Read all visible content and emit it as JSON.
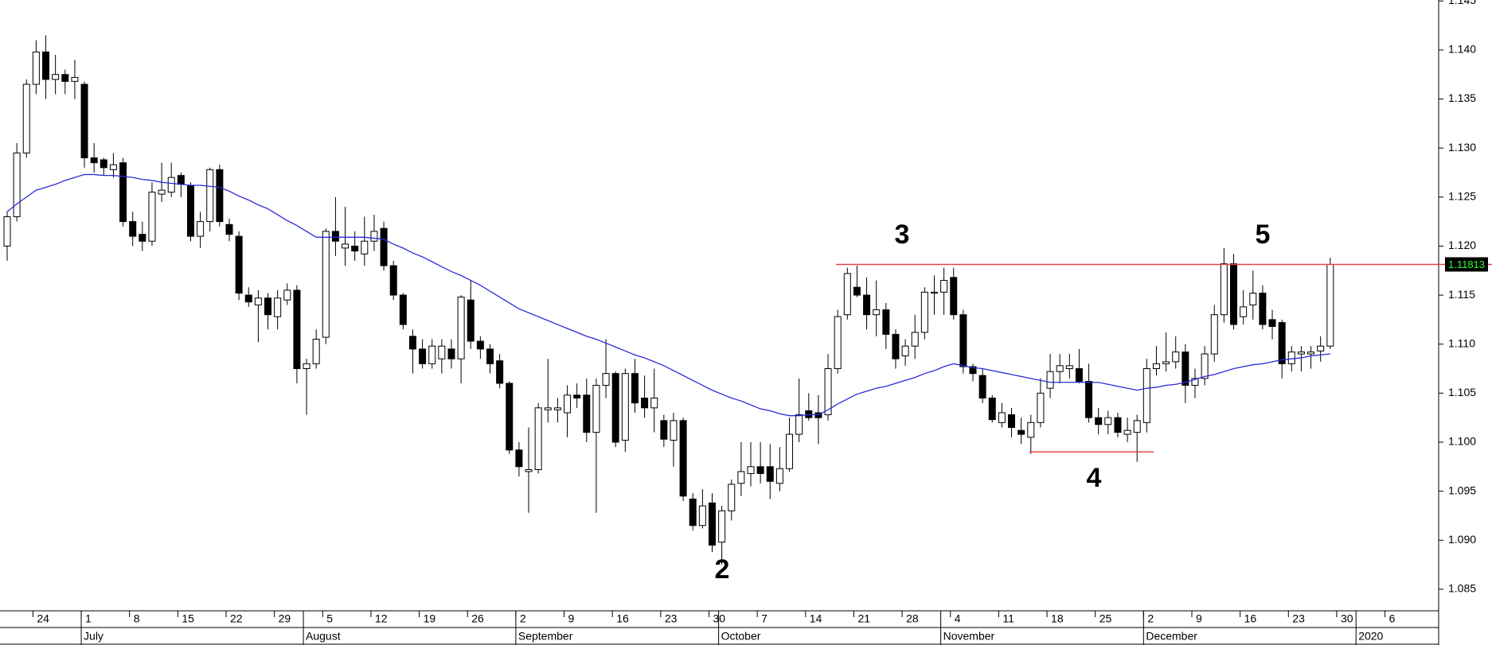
{
  "chart_data": {
    "type": "candlestick",
    "categories": [
      null,
      null,
      null,
      "24",
      null,
      null,
      null,
      null,
      "1",
      null,
      null,
      null,
      null,
      "8",
      null,
      null,
      null,
      null,
      "15",
      null,
      null,
      null,
      null,
      "22",
      null,
      null,
      null,
      null,
      "29",
      null,
      null,
      null,
      null,
      "5",
      null,
      null,
      null,
      null,
      "12",
      null,
      null,
      null,
      null,
      "19",
      null,
      null,
      null,
      null,
      "26",
      null,
      null,
      null,
      null,
      "2",
      null,
      null,
      null,
      null,
      "9",
      null,
      null,
      null,
      null,
      "16",
      null,
      null,
      null,
      null,
      "23",
      null,
      null,
      null,
      null,
      "30",
      null,
      null,
      null,
      null,
      "7",
      null,
      null,
      null,
      null,
      "14",
      null,
      null,
      null,
      null,
      "21",
      null,
      null,
      null,
      null,
      "28",
      null,
      null,
      null,
      null,
      "4",
      null,
      null,
      null,
      null,
      "11",
      null,
      null,
      null,
      null,
      "18",
      null,
      null,
      null,
      null,
      "25",
      null,
      null,
      null,
      null,
      "2",
      null,
      null,
      null,
      null,
      "9",
      null,
      null,
      null,
      null,
      "16",
      null,
      null,
      null,
      null,
      "23",
      null,
      null,
      null,
      null,
      "30",
      null,
      null,
      null,
      null,
      "6"
    ],
    "month_categories": [
      null,
      null,
      null,
      null,
      null,
      null,
      null,
      null,
      "July",
      null,
      null,
      null,
      null,
      null,
      null,
      null,
      null,
      null,
      null,
      null,
      null,
      null,
      null,
      null,
      null,
      null,
      null,
      null,
      null,
      null,
      null,
      "August",
      null,
      null,
      null,
      null,
      null,
      null,
      null,
      null,
      null,
      null,
      null,
      null,
      null,
      null,
      null,
      null,
      null,
      null,
      null,
      null,
      null,
      "September",
      null,
      null,
      null,
      null,
      null,
      null,
      null,
      null,
      null,
      null,
      null,
      null,
      null,
      null,
      null,
      null,
      null,
      null,
      null,
      null,
      "October",
      null,
      null,
      null,
      null,
      null,
      null,
      null,
      null,
      null,
      null,
      null,
      null,
      null,
      null,
      null,
      null,
      null,
      null,
      null,
      null,
      null,
      null,
      "November",
      null,
      null,
      null,
      null,
      null,
      null,
      null,
      null,
      null,
      null,
      null,
      null,
      null,
      null,
      null,
      null,
      null,
      null,
      null,
      null,
      "December",
      null,
      null,
      null,
      null,
      null,
      null,
      null,
      null,
      null,
      null,
      null,
      null,
      null,
      null,
      null,
      null,
      null,
      null,
      null,
      null,
      null,
      "2020",
      null,
      null,
      null
    ],
    "ohlc": [
      [
        1.12,
        1.1235,
        1.1185,
        1.123
      ],
      [
        1.123,
        1.1305,
        1.1225,
        1.1295
      ],
      [
        1.1295,
        1.137,
        1.129,
        1.1365
      ],
      [
        1.1365,
        1.141,
        1.1355,
        1.1398
      ],
      [
        1.1398,
        1.1415,
        1.135,
        1.137
      ],
      [
        1.137,
        1.1395,
        1.1355,
        1.1375
      ],
      [
        1.1375,
        1.138,
        1.1355,
        1.1368
      ],
      [
        1.1368,
        1.139,
        1.135,
        1.1372
      ],
      [
        1.1365,
        1.1368,
        1.128,
        1.129
      ],
      [
        1.129,
        1.1305,
        1.1275,
        1.1285
      ],
      [
        1.1288,
        1.129,
        1.1272,
        1.128
      ],
      [
        1.1278,
        1.1295,
        1.127,
        1.1283
      ],
      [
        1.1285,
        1.129,
        1.122,
        1.1225
      ],
      [
        1.1225,
        1.1235,
        1.12,
        1.121
      ],
      [
        1.1212,
        1.1225,
        1.1195,
        1.1205
      ],
      [
        1.1205,
        1.1265,
        1.12,
        1.1255
      ],
      [
        1.1253,
        1.1285,
        1.1245,
        1.1257
      ],
      [
        1.1255,
        1.1285,
        1.125,
        1.127
      ],
      [
        1.1272,
        1.1275,
        1.125,
        1.1263
      ],
      [
        1.1262,
        1.1265,
        1.1205,
        1.121
      ],
      [
        1.121,
        1.1235,
        1.1198,
        1.1225
      ],
      [
        1.1225,
        1.128,
        1.1215,
        1.1278
      ],
      [
        1.1278,
        1.1283,
        1.122,
        1.1225
      ],
      [
        1.1222,
        1.1228,
        1.1205,
        1.1212
      ],
      [
        1.121,
        1.1215,
        1.1145,
        1.1152
      ],
      [
        1.115,
        1.1158,
        1.1138,
        1.1143
      ],
      [
        1.114,
        1.1155,
        1.1102,
        1.1147
      ],
      [
        1.1147,
        1.1152,
        1.1115,
        1.113
      ],
      [
        1.1128,
        1.1155,
        1.1115,
        1.1147
      ],
      [
        1.1145,
        1.1162,
        1.114,
        1.1155
      ],
      [
        1.1155,
        1.116,
        1.106,
        1.1075
      ],
      [
        1.1075,
        1.1085,
        1.1028,
        1.108
      ],
      [
        1.108,
        1.1115,
        1.1075,
        1.1105
      ],
      [
        1.1107,
        1.1218,
        1.11,
        1.1215
      ],
      [
        1.1215,
        1.125,
        1.119,
        1.1205
      ],
      [
        1.1198,
        1.124,
        1.118,
        1.1202
      ],
      [
        1.12,
        1.1215,
        1.1185,
        1.1195
      ],
      [
        1.1192,
        1.123,
        1.118,
        1.1205
      ],
      [
        1.1205,
        1.1232,
        1.1195,
        1.1215
      ],
      [
        1.1218,
        1.1225,
        1.1175,
        1.118
      ],
      [
        1.118,
        1.1185,
        1.1145,
        1.115
      ],
      [
        1.115,
        1.1152,
        1.1115,
        1.112
      ],
      [
        1.1108,
        1.1115,
        1.107,
        1.1095
      ],
      [
        1.1095,
        1.1105,
        1.1075,
        1.108
      ],
      [
        1.108,
        1.1105,
        1.1075,
        1.1098
      ],
      [
        1.1085,
        1.1105,
        1.107,
        1.1098
      ],
      [
        1.1095,
        1.1105,
        1.1075,
        1.1085
      ],
      [
        1.1085,
        1.115,
        1.106,
        1.1148
      ],
      [
        1.1145,
        1.1165,
        1.1095,
        1.1103
      ],
      [
        1.1103,
        1.1108,
        1.1085,
        1.1095
      ],
      [
        1.1095,
        1.11,
        1.107,
        1.108
      ],
      [
        1.1083,
        1.109,
        1.1055,
        1.106
      ],
      [
        1.106,
        1.1062,
        1.0988,
        1.0992
      ],
      [
        1.0992,
        1.1,
        1.0965,
        1.0975
      ],
      [
        1.097,
        1.1015,
        1.0928,
        1.0972
      ],
      [
        1.0972,
        1.104,
        1.0968,
        1.1035
      ],
      [
        1.1033,
        1.1085,
        1.102,
        1.1035
      ],
      [
        1.1033,
        1.1045,
        1.102,
        1.1035
      ],
      [
        1.103,
        1.1058,
        1.1005,
        1.1048
      ],
      [
        1.1048,
        1.106,
        1.1035,
        1.1045
      ],
      [
        1.1048,
        1.1065,
        1.1,
        1.101
      ],
      [
        1.101,
        1.1065,
        1.0928,
        1.1058
      ],
      [
        1.1058,
        1.1105,
        1.1045,
        1.107
      ],
      [
        1.107,
        1.1072,
        1.0995,
        1.1
      ],
      [
        1.1002,
        1.1075,
        1.099,
        1.107
      ],
      [
        1.107,
        1.1085,
        1.103,
        1.104
      ],
      [
        1.1045,
        1.1068,
        1.1025,
        1.1035
      ],
      [
        1.1035,
        1.1075,
        1.101,
        1.1045
      ],
      [
        1.1022,
        1.1028,
        1.0995,
        1.1003
      ],
      [
        1.1002,
        1.103,
        1.0975,
        1.1022
      ],
      [
        1.1022,
        1.1025,
        1.094,
        1.0945
      ],
      [
        1.0942,
        1.0948,
        1.091,
        1.0915
      ],
      [
        1.0915,
        1.0952,
        1.0912,
        1.0935
      ],
      [
        1.0938,
        1.0948,
        1.0888,
        1.0895
      ],
      [
        1.0898,
        1.0935,
        1.0875,
        1.093
      ],
      [
        1.093,
        1.0962,
        1.092,
        1.0957
      ],
      [
        1.0958,
        1.1,
        1.0945,
        1.097
      ],
      [
        1.0968,
        1.1,
        1.0955,
        1.0975
      ],
      [
        1.0975,
        1.1,
        1.0958,
        1.0968
      ],
      [
        1.0975,
        1.0998,
        1.0942,
        1.096
      ],
      [
        1.0958,
        1.0995,
        1.095,
        1.0973
      ],
      [
        1.0973,
        1.1025,
        1.097,
        1.1008
      ],
      [
        1.1008,
        1.1065,
        1.1,
        1.1028
      ],
      [
        1.1032,
        1.105,
        1.1022,
        1.1025
      ],
      [
        1.103,
        1.1048,
        1.0998,
        1.1025
      ],
      [
        1.1028,
        1.109,
        1.1022,
        1.1075
      ],
      [
        1.1075,
        1.1135,
        1.107,
        1.1128
      ],
      [
        1.113,
        1.1178,
        1.1125,
        1.1172
      ],
      [
        1.1158,
        1.118,
        1.1148,
        1.115
      ],
      [
        1.115,
        1.1168,
        1.1115,
        1.113
      ],
      [
        1.113,
        1.1165,
        1.1108,
        1.1135
      ],
      [
        1.1135,
        1.1142,
        1.1095,
        1.111
      ],
      [
        1.111,
        1.1115,
        1.1075,
        1.1085
      ],
      [
        1.1088,
        1.1105,
        1.1078,
        1.1098
      ],
      [
        1.1098,
        1.113,
        1.1085,
        1.1112
      ],
      [
        1.1112,
        1.1158,
        1.1105,
        1.1153
      ],
      [
        1.1152,
        1.117,
        1.113,
        1.1153
      ],
      [
        1.1153,
        1.1178,
        1.113,
        1.1165
      ],
      [
        1.1168,
        1.1178,
        1.1125,
        1.113
      ],
      [
        1.113,
        1.1135,
        1.107,
        1.1077
      ],
      [
        1.1077,
        1.108,
        1.1062,
        1.107
      ],
      [
        1.1068,
        1.1075,
        1.104,
        1.1045
      ],
      [
        1.1045,
        1.1048,
        1.102,
        1.1023
      ],
      [
        1.102,
        1.104,
        1.1015,
        1.103
      ],
      [
        1.1028,
        1.1035,
        1.1005,
        1.1015
      ],
      [
        1.1012,
        1.1025,
        1.0998,
        1.1008
      ],
      [
        1.1005,
        1.1028,
        1.0988,
        1.102
      ],
      [
        1.102,
        1.1065,
        1.1015,
        1.105
      ],
      [
        1.1055,
        1.109,
        1.1045,
        1.1072
      ],
      [
        1.1072,
        1.109,
        1.106,
        1.1078
      ],
      [
        1.1075,
        1.109,
        1.1065,
        1.1078
      ],
      [
        1.1075,
        1.1095,
        1.106,
        1.1062
      ],
      [
        1.1062,
        1.108,
        1.102,
        1.1025
      ],
      [
        1.1025,
        1.1035,
        1.1008,
        1.1018
      ],
      [
        1.1018,
        1.1032,
        1.1008,
        1.1025
      ],
      [
        1.1025,
        1.103,
        1.1005,
        1.101
      ],
      [
        1.1008,
        1.1025,
        1.1,
        1.1012
      ],
      [
        1.101,
        1.1028,
        1.098,
        1.1022
      ],
      [
        1.102,
        1.1085,
        1.101,
        1.1075
      ],
      [
        1.1075,
        1.1098,
        1.1068,
        1.108
      ],
      [
        1.108,
        1.1112,
        1.1072,
        1.1082
      ],
      [
        1.1082,
        1.1108,
        1.1075,
        1.1092
      ],
      [
        1.1092,
        1.11,
        1.104,
        1.1058
      ],
      [
        1.1058,
        1.1075,
        1.1045,
        1.1065
      ],
      [
        1.1065,
        1.1098,
        1.1058,
        1.109
      ],
      [
        1.109,
        1.114,
        1.1082,
        1.113
      ],
      [
        1.113,
        1.1198,
        1.1122,
        1.1182
      ],
      [
        1.1182,
        1.1192,
        1.1115,
        1.112
      ],
      [
        1.1128,
        1.1155,
        1.112,
        1.1138
      ],
      [
        1.114,
        1.1175,
        1.1125,
        1.1152
      ],
      [
        1.1152,
        1.116,
        1.1115,
        1.112
      ],
      [
        1.1125,
        1.1135,
        1.1105,
        1.1118
      ],
      [
        1.1122,
        1.1125,
        1.1065,
        1.108
      ],
      [
        1.108,
        1.1098,
        1.1072,
        1.1092
      ],
      [
        1.109,
        1.1098,
        1.1072,
        1.1092
      ],
      [
        1.109,
        1.1098,
        1.1075,
        1.1092
      ],
      [
        1.1093,
        1.1108,
        1.1082,
        1.1098
      ],
      [
        1.1098,
        1.1188,
        1.1095,
        1.11813
      ],
      null,
      null,
      null,
      null,
      null,
      null
    ],
    "up_color": "#ffffff",
    "down_color": "#000000",
    "moving_average": {
      "color": "#2b2bd9",
      "values": [
        1.1235,
        1.1243,
        1.125,
        1.1257,
        1.126,
        1.1263,
        1.1267,
        1.127,
        1.1273,
        1.1273,
        1.1272,
        1.1272,
        1.1271,
        1.127,
        1.1268,
        1.1267,
        1.1265,
        1.1264,
        1.1263,
        1.1262,
        1.1262,
        1.1261,
        1.126,
        1.1256,
        1.1251,
        1.1247,
        1.1242,
        1.1238,
        1.1232,
        1.1226,
        1.1221,
        1.1215,
        1.1209,
        1.1209,
        1.1209,
        1.1209,
        1.1209,
        1.1209,
        1.1208,
        1.1207,
        1.1202,
        1.1198,
        1.1193,
        1.1189,
        1.1184,
        1.1179,
        1.1174,
        1.117,
        1.1165,
        1.116,
        1.1154,
        1.1148,
        1.1142,
        1.1136,
        1.1132,
        1.1128,
        1.1124,
        1.112,
        1.1116,
        1.1112,
        1.1108,
        1.1105,
        1.1101,
        1.1097,
        1.1093,
        1.1089,
        1.1086,
        1.1082,
        1.1078,
        1.1073,
        1.1068,
        1.1063,
        1.1058,
        1.1053,
        1.1049,
        1.1045,
        1.1042,
        1.1038,
        1.1034,
        1.1032,
        1.1029,
        1.1027,
        1.1027,
        1.1028,
        1.1028,
        1.1033,
        1.1039,
        1.1044,
        1.1049,
        1.1052,
        1.1055,
        1.1057,
        1.106,
        1.1063,
        1.1066,
        1.107,
        1.1073,
        1.1077,
        1.108,
        1.1078,
        1.1076,
        1.1075,
        1.1073,
        1.1071,
        1.1069,
        1.1067,
        1.1065,
        1.1063,
        1.1061,
        1.1061,
        1.1061,
        1.1061,
        1.1061,
        1.1061,
        1.1059,
        1.1057,
        1.1055,
        1.1053,
        1.1055,
        1.1056,
        1.1058,
        1.1059,
        1.1061,
        1.1064,
        1.1067,
        1.1069,
        1.1072,
        1.1075,
        1.1077,
        1.1079,
        1.108,
        1.1082,
        1.1084,
        1.1085,
        1.1086,
        1.1088,
        1.1089,
        1.109,
        null,
        null,
        null,
        null,
        null,
        null
      ]
    },
    "ylim": [
      1.0828,
      1.1451
    ],
    "yticks": [
      1.085,
      {
        "value": 1.09,
        "label": "1.090"
      },
      1.095,
      {
        "value": 1.1,
        "label": "1.100"
      },
      1.105,
      {
        "value": 1.11,
        "label": "1.110"
      },
      1.115,
      {
        "value": 1.12,
        "label": "1.120"
      },
      1.125,
      {
        "value": 1.13,
        "label": "1.130"
      },
      1.135,
      {
        "value": 1.14,
        "label": "1.140"
      },
      1.145
    ],
    "levels": [
      {
        "value": 1.11813,
        "color": "#e04848"
      },
      {
        "value": 1.099,
        "color": "#e04848"
      }
    ],
    "last_price": 1.11813,
    "annotations": [
      "2",
      "3",
      "4",
      "5"
    ]
  }
}
